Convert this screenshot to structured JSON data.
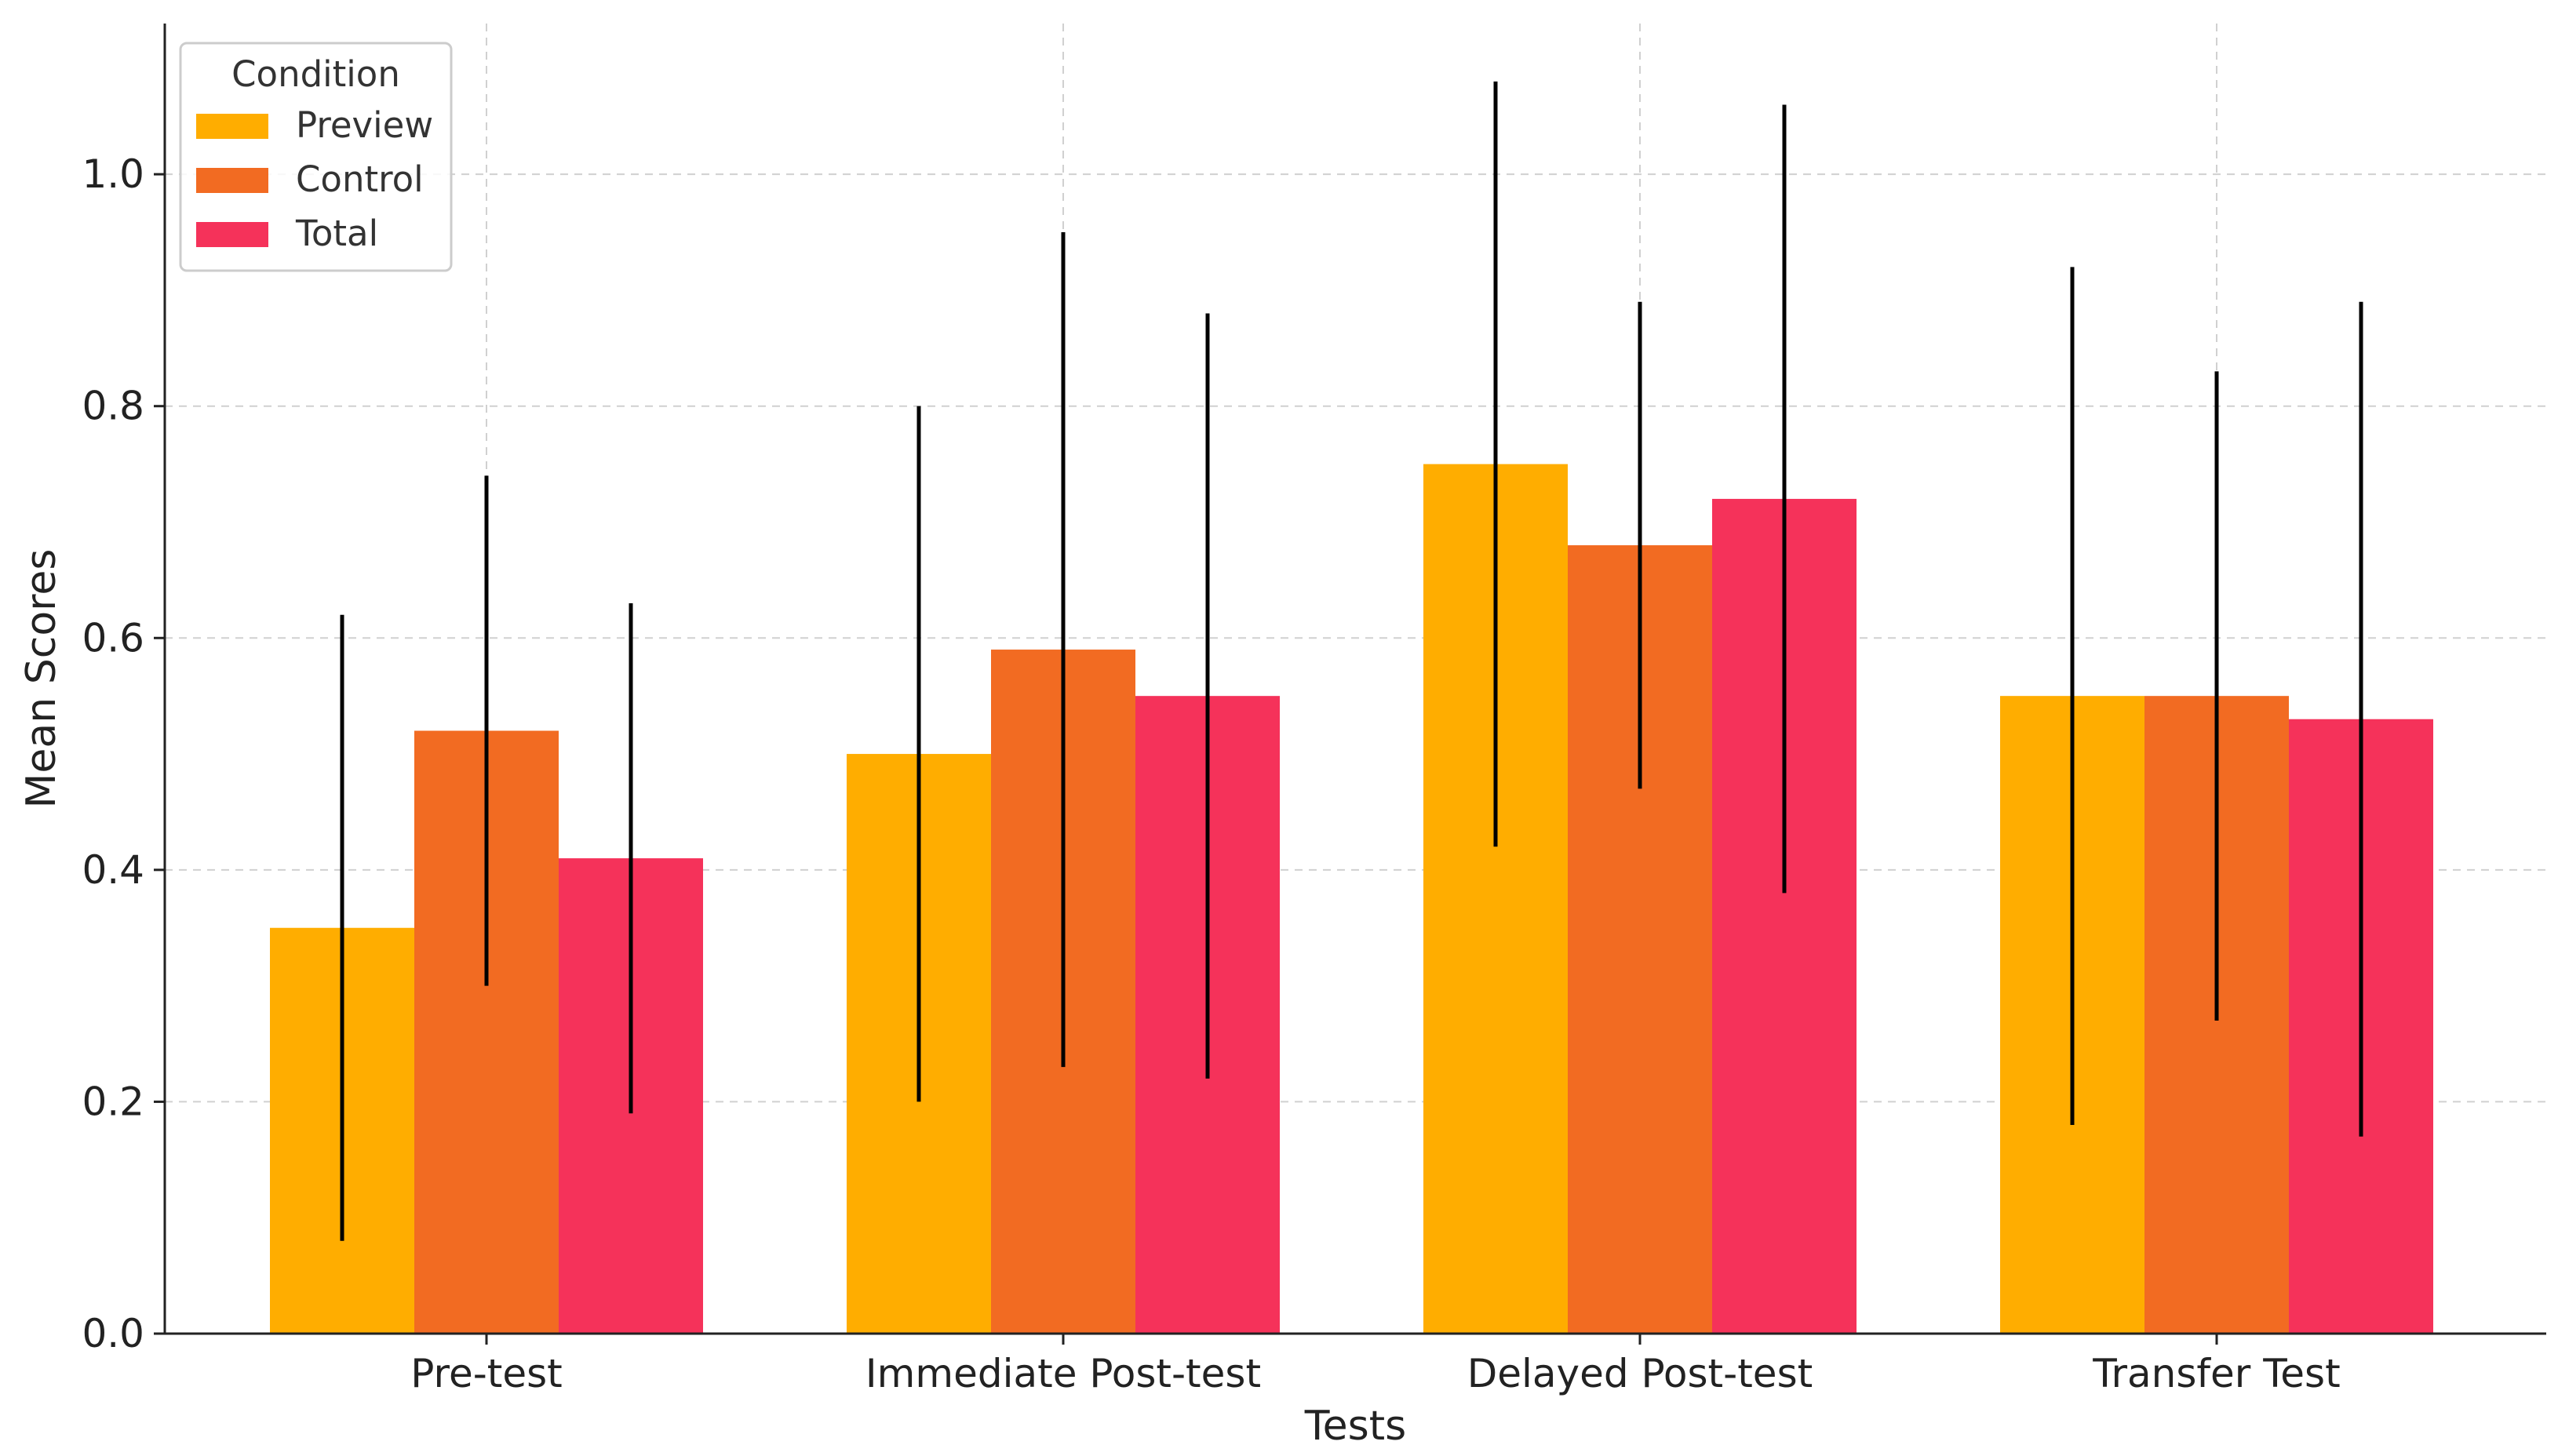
{
  "chart_data": {
    "type": "bar",
    "title": "",
    "xlabel": "Tests",
    "ylabel": "Mean Scores",
    "categories": [
      "Pre-test",
      "Immediate Post-test",
      "Delayed Post-test",
      "Transfer Test"
    ],
    "ylim": [
      0,
      1.13
    ],
    "yticks": [
      0.0,
      0.2,
      0.4,
      0.6,
      0.8,
      1.0
    ],
    "ytick_labels": [
      "0.0",
      "0.2",
      "0.4",
      "0.6",
      "0.8",
      "1.0"
    ],
    "grid": true,
    "legend": {
      "title": "Condition",
      "placement": "top-left"
    },
    "series": [
      {
        "name": "Preview",
        "color": "#FFAD00",
        "values": [
          0.35,
          0.5,
          0.75,
          0.55
        ],
        "err_low": [
          0.08,
          0.2,
          0.42,
          0.18
        ],
        "err_high": [
          0.62,
          0.8,
          1.08,
          0.92
        ]
      },
      {
        "name": "Control",
        "color": "#F26B22",
        "values": [
          0.52,
          0.59,
          0.68,
          0.55
        ],
        "err_low": [
          0.3,
          0.23,
          0.47,
          0.27
        ],
        "err_high": [
          0.74,
          0.95,
          0.89,
          0.83
        ]
      },
      {
        "name": "Total",
        "color": "#F5325A",
        "values": [
          0.41,
          0.55,
          0.72,
          0.53
        ],
        "err_low": [
          0.19,
          0.22,
          0.38,
          0.17
        ],
        "err_high": [
          0.63,
          0.88,
          1.06,
          0.89
        ]
      }
    ]
  }
}
